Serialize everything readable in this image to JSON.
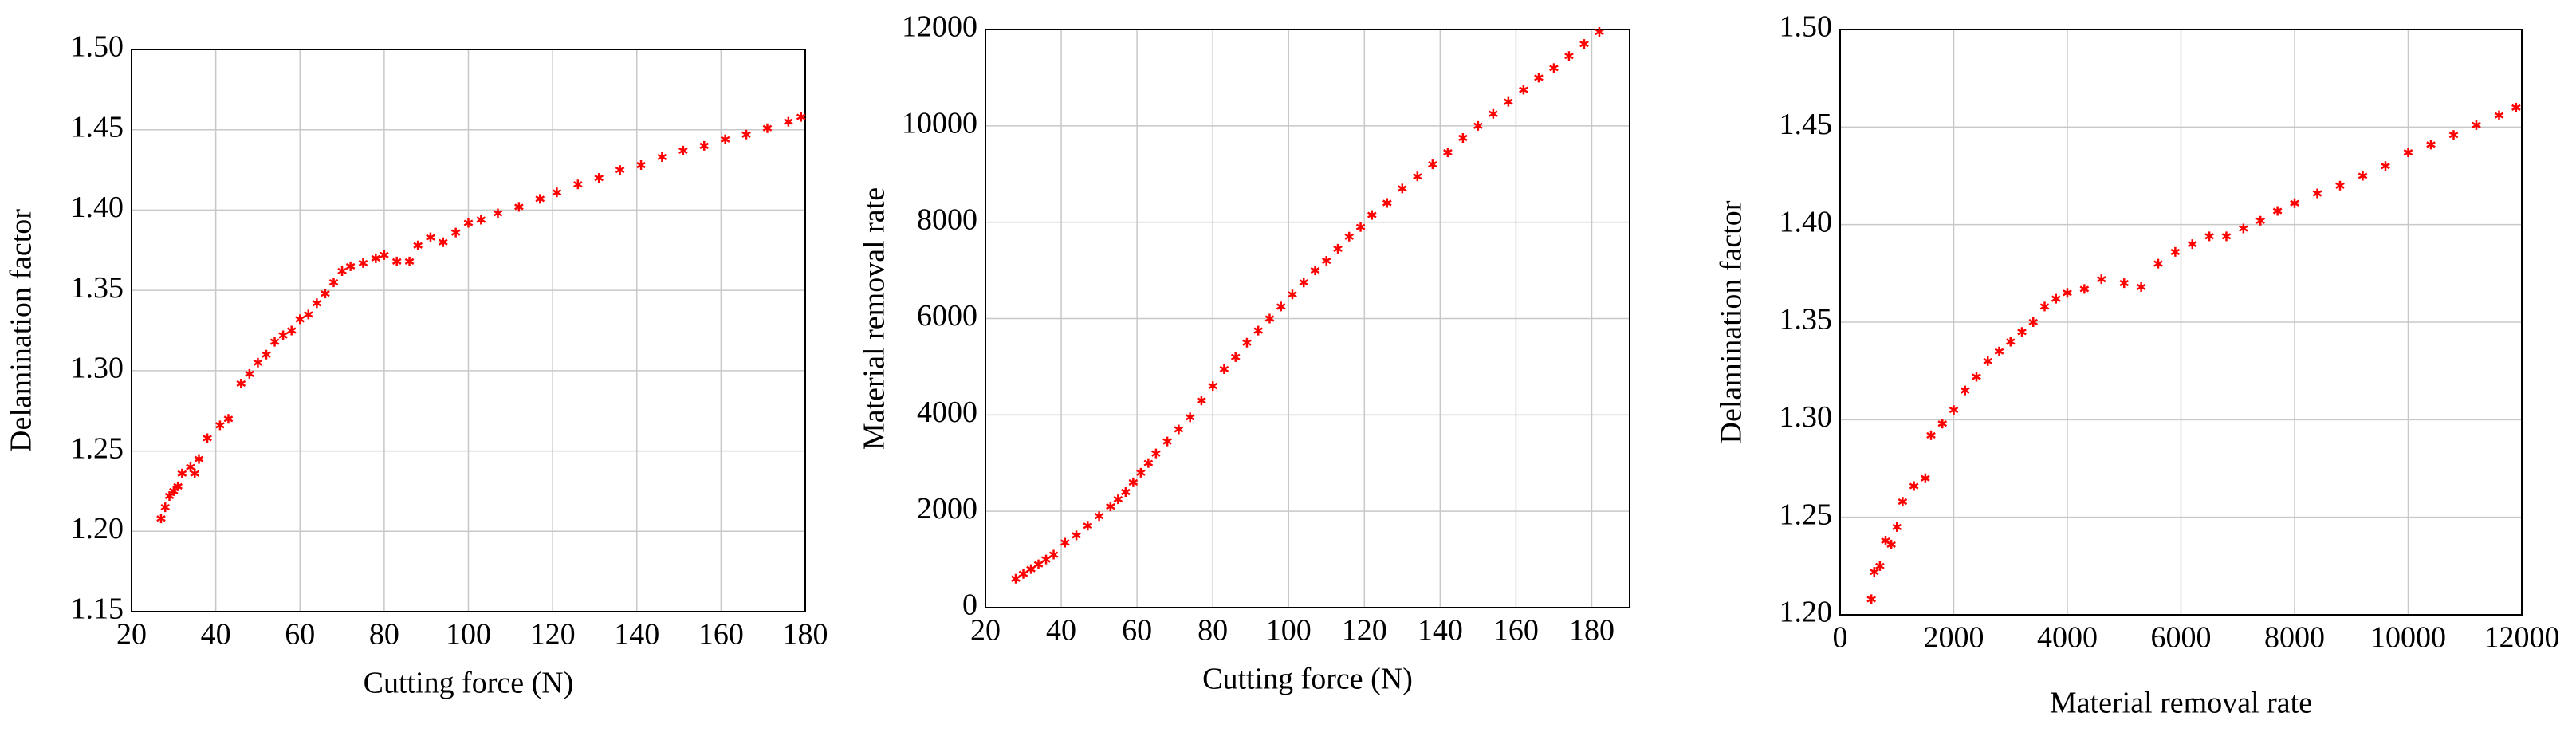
{
  "chart_data": [
    {
      "type": "scatter",
      "xlabel": "Cutting force (N)",
      "ylabel": "Delamination factor",
      "xlim": [
        20,
        180
      ],
      "xticks": [
        20,
        40,
        60,
        80,
        100,
        120,
        140,
        160,
        180
      ],
      "ylim": [
        1.15,
        1.5
      ],
      "yticks": [
        1.15,
        {
          "value": 1.2,
          "label": "1.20"
        },
        1.25,
        {
          "value": 1.3,
          "label": "1.30"
        },
        1.35,
        {
          "value": 1.4,
          "label": "1.40"
        },
        1.45,
        {
          "value": 1.5,
          "label": "1.50"
        }
      ],
      "grid": true,
      "series": [
        {
          "color": "#ff0000",
          "x": [
            27,
            28,
            29,
            30,
            31,
            32,
            34,
            35,
            36,
            38,
            41,
            43,
            46,
            48,
            50,
            52,
            54,
            56,
            58,
            60,
            62,
            64,
            66,
            68,
            70,
            72,
            75,
            78,
            80,
            83,
            86,
            88,
            91,
            94,
            97,
            100,
            103,
            107,
            112,
            117,
            121,
            126,
            131,
            136,
            141,
            146,
            151,
            156,
            161,
            166,
            171,
            176,
            179
          ],
          "values": [
            1.208,
            1.215,
            1.222,
            1.225,
            1.228,
            1.236,
            1.24,
            1.236,
            1.245,
            1.258,
            1.266,
            1.27,
            1.292,
            1.298,
            1.305,
            1.31,
            1.318,
            1.322,
            1.325,
            1.332,
            1.335,
            1.342,
            1.348,
            1.355,
            1.362,
            1.365,
            1.367,
            1.37,
            1.372,
            1.368,
            1.368,
            1.378,
            1.383,
            1.38,
            1.386,
            1.392,
            1.394,
            1.398,
            1.402,
            1.407,
            1.411,
            1.416,
            1.42,
            1.425,
            1.428,
            1.433,
            1.437,
            1.44,
            1.444,
            1.447,
            1.451,
            1.455,
            1.458
          ]
        }
      ]
    },
    {
      "type": "scatter",
      "xlabel": "Cutting force (N)",
      "ylabel": "Material removal rate",
      "xlim": [
        20,
        190
      ],
      "xticks": [
        20,
        40,
        60,
        80,
        100,
        120,
        140,
        160,
        180
      ],
      "ylim": [
        0,
        12000
      ],
      "yticks": [
        0,
        2000,
        4000,
        6000,
        8000,
        10000,
        12000
      ],
      "grid": true,
      "series": [
        {
          "color": "#ff0000",
          "x": [
            28,
            30,
            32,
            34,
            36,
            38,
            41,
            44,
            47,
            50,
            53,
            55,
            57,
            59,
            61,
            63,
            65,
            68,
            71,
            74,
            77,
            80,
            83,
            86,
            89,
            92,
            95,
            98,
            101,
            104,
            107,
            110,
            113,
            116,
            119,
            122,
            126,
            130,
            134,
            138,
            142,
            146,
            150,
            154,
            158,
            162,
            166,
            170,
            174,
            178,
            182
          ],
          "values": [
            600,
            700,
            800,
            900,
            1000,
            1100,
            1350,
            1500,
            1700,
            1900,
            2100,
            2250,
            2400,
            2600,
            2800,
            3000,
            3200,
            3450,
            3700,
            3950,
            4300,
            4600,
            4950,
            5200,
            5500,
            5750,
            6000,
            6250,
            6500,
            6750,
            7000,
            7200,
            7450,
            7700,
            7900,
            8150,
            8400,
            8700,
            8950,
            9200,
            9450,
            9750,
            10000,
            10250,
            10500,
            10750,
            11000,
            11200,
            11450,
            11700,
            11950
          ]
        }
      ]
    },
    {
      "type": "scatter",
      "xlabel": "Material removal rate",
      "ylabel": "Delamination factor",
      "xlim": [
        0,
        12000
      ],
      "xticks": [
        0,
        2000,
        4000,
        6000,
        8000,
        10000,
        12000
      ],
      "ylim": [
        1.2,
        1.5
      ],
      "yticks": [
        {
          "value": 1.2,
          "label": "1.20"
        },
        1.25,
        {
          "value": 1.3,
          "label": "1.30"
        },
        1.35,
        {
          "value": 1.4,
          "label": "1.40"
        },
        1.45,
        {
          "value": 1.5,
          "label": "1.50"
        }
      ],
      "grid": true,
      "series": [
        {
          "color": "#ff0000",
          "x": [
            550,
            600,
            700,
            800,
            900,
            1000,
            1100,
            1300,
            1500,
            1600,
            1800,
            2000,
            2200,
            2400,
            2600,
            2800,
            3000,
            3200,
            3400,
            3600,
            3800,
            4000,
            4300,
            4600,
            5000,
            5300,
            5600,
            5900,
            6200,
            6500,
            6800,
            7100,
            7400,
            7700,
            8000,
            8400,
            8800,
            9200,
            9600,
            10000,
            10400,
            10800,
            11200,
            11600,
            11900
          ],
          "values": [
            1.208,
            1.222,
            1.225,
            1.238,
            1.236,
            1.245,
            1.258,
            1.266,
            1.27,
            1.292,
            1.298,
            1.305,
            1.315,
            1.322,
            1.33,
            1.335,
            1.34,
            1.345,
            1.35,
            1.358,
            1.362,
            1.365,
            1.367,
            1.372,
            1.37,
            1.368,
            1.38,
            1.386,
            1.39,
            1.394,
            1.394,
            1.398,
            1.402,
            1.407,
            1.411,
            1.416,
            1.42,
            1.425,
            1.43,
            1.437,
            1.441,
            1.446,
            1.451,
            1.456,
            1.46
          ]
        }
      ]
    }
  ]
}
